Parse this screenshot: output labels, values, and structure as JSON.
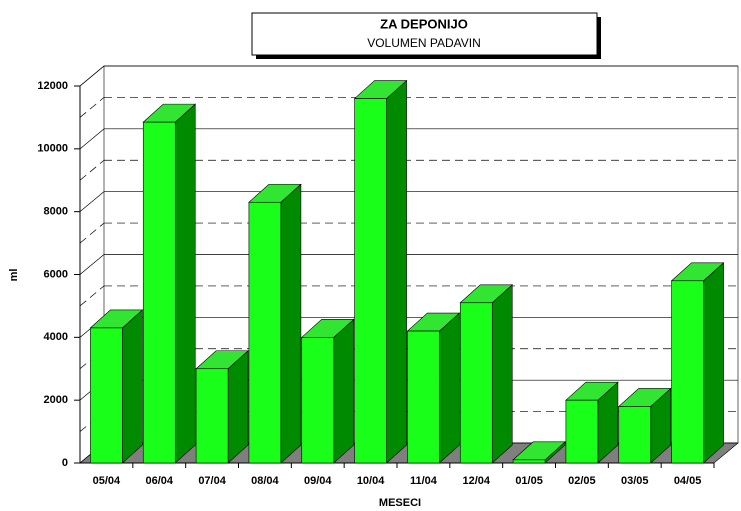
{
  "chart_data": {
    "type": "bar3d",
    "title": "ZA DEPONIJO",
    "subtitle": "VOLUMEN PADAVIN",
    "x_label": "MESECI",
    "y_label": "ml",
    "categories": [
      "05/04",
      "06/04",
      "07/04",
      "08/04",
      "09/04",
      "10/04",
      "11/04",
      "12/04",
      "01/05",
      "02/05",
      "03/05",
      "04/05"
    ],
    "values": [
      4300,
      10850,
      3000,
      8300,
      4000,
      11600,
      4200,
      5100,
      100,
      2000,
      1800,
      5800
    ],
    "color": "#1aff1a",
    "ylim": [
      0,
      12000
    ],
    "yticks": [
      0,
      2000,
      4000,
      6000,
      8000,
      10000,
      12000
    ],
    "grid": true
  }
}
